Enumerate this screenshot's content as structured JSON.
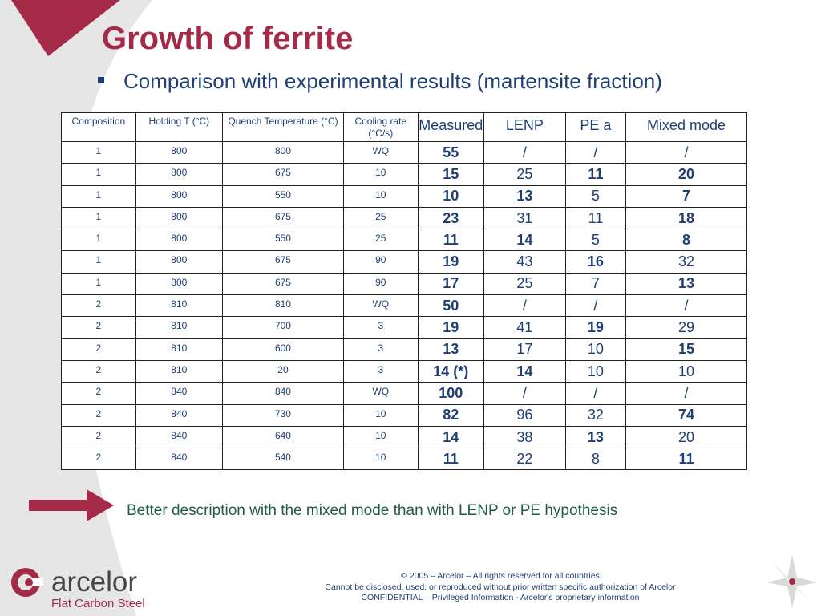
{
  "slide": {
    "title": "Growth of ferrite",
    "bullet": "Comparison with experimental results (martensite fraction)",
    "conclusion": "Better description with the mixed mode than with LENP or PE hypothesis"
  },
  "table": {
    "headers": [
      "Composition",
      "Holding  T (°C)",
      "Quench Temperature (°C)",
      "Cooling rate (°C/s)",
      "Measured",
      "LENP",
      "PE a",
      "Mixed mode"
    ],
    "rows": [
      [
        "1",
        "800",
        "800",
        "WQ",
        "55",
        "/",
        "/",
        "/"
      ],
      [
        "1",
        "800",
        "675",
        "10",
        "15",
        "25",
        "11",
        "20"
      ],
      [
        "1",
        "800",
        "550",
        "10",
        "10",
        "13",
        "5",
        "7"
      ],
      [
        "1",
        "800",
        "675",
        "25",
        "23",
        "31",
        "11",
        "18"
      ],
      [
        "1",
        "800",
        "550",
        "25",
        "11",
        "14",
        "5",
        "8"
      ],
      [
        "1",
        "800",
        "675",
        "90",
        "19",
        "43",
        "16",
        "32"
      ],
      [
        "1",
        "800",
        "675",
        "90",
        "17",
        "25",
        "7",
        "13"
      ],
      [
        "2",
        "810",
        "810",
        "WQ",
        "50",
        "/",
        "/",
        "/"
      ],
      [
        "2",
        "810",
        "700",
        "3",
        "19",
        "41",
        "19",
        "29"
      ],
      [
        "2",
        "810",
        "600",
        "3",
        "13",
        "17",
        "10",
        "15"
      ],
      [
        "2",
        "810",
        "20",
        "3",
        "14 (*)",
        "14",
        "10",
        "10"
      ],
      [
        "2",
        "840",
        "840",
        "WQ",
        "100",
        "/",
        "/",
        "/"
      ],
      [
        "2",
        "840",
        "730",
        "10",
        "82",
        "96",
        "32",
        "74"
      ],
      [
        "2",
        "840",
        "640",
        "10",
        "14",
        "38",
        "13",
        "20"
      ],
      [
        "2",
        "840",
        "540",
        "10",
        "11",
        "22",
        "8",
        "11"
      ]
    ],
    "bold_cells": [
      [
        true,
        false,
        false,
        false
      ],
      [
        true,
        false,
        true,
        true
      ],
      [
        true,
        true,
        false,
        true
      ],
      [
        true,
        false,
        false,
        true
      ],
      [
        true,
        true,
        false,
        true
      ],
      [
        true,
        false,
        true,
        false
      ],
      [
        true,
        false,
        false,
        true
      ],
      [
        true,
        false,
        false,
        false
      ],
      [
        true,
        false,
        true,
        false
      ],
      [
        true,
        false,
        false,
        true
      ],
      [
        true,
        true,
        false,
        false
      ],
      [
        true,
        false,
        false,
        false
      ],
      [
        true,
        false,
        false,
        true
      ],
      [
        true,
        false,
        true,
        false
      ],
      [
        true,
        false,
        false,
        true
      ]
    ]
  },
  "logo": {
    "name": "arcelor",
    "subtitle": "Flat Carbon Steel"
  },
  "footer": {
    "line1": "© 2005 – Arcelor – All rights reserved for all countries",
    "line2": "Cannot be disclosed, used, or reproduced without prior written specific authorization of Arcelor",
    "line3": "CONFIDENTIAL – Privileged Information - Arcelor's proprietary information"
  },
  "colors": {
    "accent": "#a52a48",
    "text_blue": "#1f3f73",
    "text_green": "#1f5a4a",
    "sweep_grey": "#e6e6e6"
  },
  "icons": {
    "bullet": "square-bullet-icon",
    "arrow": "right-arrow-icon",
    "logo": "arcelor-logo-icon",
    "star": "compass-star-icon"
  }
}
